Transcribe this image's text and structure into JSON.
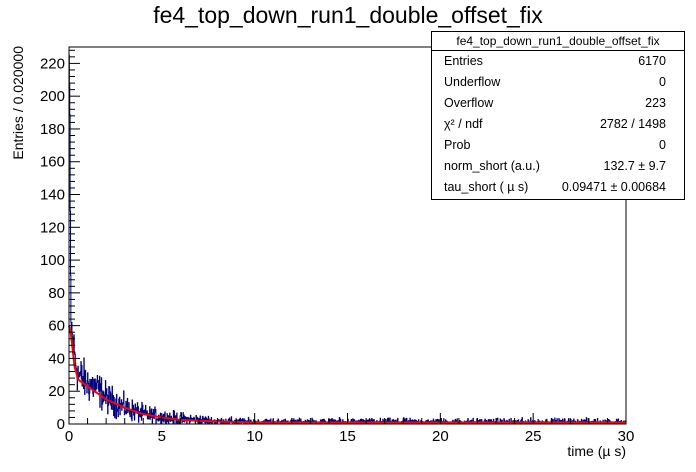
{
  "chart_data": {
    "type": "histogram",
    "title": "fe4_top_down_run1_double_offset_fix",
    "xlabel": "time (µ s)",
    "ylabel": "Entries / 0.020000",
    "xlim": [
      0,
      30
    ],
    "ylim": [
      0,
      230
    ],
    "xticks": [
      0,
      5,
      10,
      15,
      20,
      25,
      30
    ],
    "yticks": [
      0,
      20,
      40,
      60,
      80,
      100,
      120,
      140,
      160,
      180,
      200,
      220
    ],
    "bin_width": 0.02,
    "grid": false,
    "histogram_color": "#00007f",
    "fit_color": "#ff0000",
    "histogram_envelope": [
      {
        "x": 0.02,
        "y": 225
      },
      {
        "x": 0.1,
        "y": 62
      },
      {
        "x": 0.25,
        "y": 45
      },
      {
        "x": 0.5,
        "y": 30
      },
      {
        "x": 1.0,
        "y": 25
      },
      {
        "x": 1.5,
        "y": 22
      },
      {
        "x": 2.0,
        "y": 16
      },
      {
        "x": 3.0,
        "y": 10
      },
      {
        "x": 4.0,
        "y": 6
      },
      {
        "x": 5.0,
        "y": 4
      },
      {
        "x": 6.0,
        "y": 3
      },
      {
        "x": 8.0,
        "y": 1.5
      },
      {
        "x": 10.0,
        "y": 1
      },
      {
        "x": 15.0,
        "y": 1
      },
      {
        "x": 20.0,
        "y": 1
      },
      {
        "x": 25.0,
        "y": 1
      },
      {
        "x": 30.0,
        "y": 1
      }
    ],
    "fit_curve": [
      {
        "x": 0.0,
        "y": 60
      },
      {
        "x": 0.1,
        "y": 55
      },
      {
        "x": 0.2,
        "y": 45
      },
      {
        "x": 0.3,
        "y": 35
      },
      {
        "x": 0.5,
        "y": 27
      },
      {
        "x": 1.0,
        "y": 23
      },
      {
        "x": 1.5,
        "y": 19
      },
      {
        "x": 2.0,
        "y": 15
      },
      {
        "x": 3.0,
        "y": 10
      },
      {
        "x": 4.0,
        "y": 6
      },
      {
        "x": 5.0,
        "y": 4
      },
      {
        "x": 6.0,
        "y": 2.5
      },
      {
        "x": 8.0,
        "y": 1.5
      },
      {
        "x": 10.0,
        "y": 1
      },
      {
        "x": 15.0,
        "y": 1
      },
      {
        "x": 20.0,
        "y": 1
      },
      {
        "x": 25.0,
        "y": 1
      },
      {
        "x": 30.0,
        "y": 1
      }
    ],
    "stats_box": {
      "title": "fe4_top_down_run1_double_offset_fix",
      "rows": [
        {
          "label": "Entries",
          "value": "6170"
        },
        {
          "label": "Underflow",
          "value": "0"
        },
        {
          "label": "Overflow",
          "value": "223"
        },
        {
          "label": "χ² / ndf",
          "value": "2782 / 1498"
        },
        {
          "label": "Prob",
          "value": "0"
        },
        {
          "label": "norm_short (a.u.)",
          "value": "132.7  ± 9.7"
        },
        {
          "label": "tau_short ( µ s)",
          "value": "0.09471 ± 0.00684"
        }
      ]
    }
  }
}
